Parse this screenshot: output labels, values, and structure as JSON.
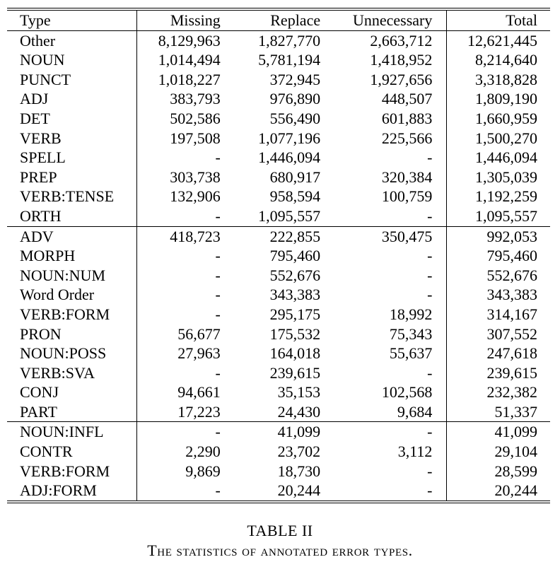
{
  "table": {
    "headers": {
      "type": "Type",
      "missing": "Missing",
      "replace": "Replace",
      "unnecessary": "Unnecessary",
      "total": "Total"
    },
    "groups": [
      [
        [
          "Other",
          "8,129,963",
          "1,827,770",
          "2,663,712",
          "12,621,445"
        ],
        [
          "NOUN",
          "1,014,494",
          "5,781,194",
          "1,418,952",
          "8,214,640"
        ],
        [
          "PUNCT",
          "1,018,227",
          "372,945",
          "1,927,656",
          "3,318,828"
        ],
        [
          "ADJ",
          "383,793",
          "976,890",
          "448,507",
          "1,809,190"
        ],
        [
          "DET",
          "502,586",
          "556,490",
          "601,883",
          "1,660,959"
        ],
        [
          "VERB",
          "197,508",
          "1,077,196",
          "225,566",
          "1,500,270"
        ],
        [
          "SPELL",
          "-",
          "1,446,094",
          "-",
          "1,446,094"
        ],
        [
          "PREP",
          "303,738",
          "680,917",
          "320,384",
          "1,305,039"
        ],
        [
          "VERB:TENSE",
          "132,906",
          "958,594",
          "100,759",
          "1,192,259"
        ],
        [
          "ORTH",
          "-",
          "1,095,557",
          "-",
          "1,095,557"
        ]
      ],
      [
        [
          "ADV",
          "418,723",
          "222,855",
          "350,475",
          "992,053"
        ],
        [
          "MORPH",
          "-",
          "795,460",
          "-",
          "795,460"
        ],
        [
          "NOUN:NUM",
          "-",
          "552,676",
          "-",
          "552,676"
        ],
        [
          "Word Order",
          "-",
          "343,383",
          "-",
          "343,383"
        ],
        [
          "VERB:FORM",
          "-",
          "295,175",
          "18,992",
          "314,167"
        ],
        [
          "PRON",
          "56,677",
          "175,532",
          "75,343",
          "307,552"
        ],
        [
          "NOUN:POSS",
          "27,963",
          "164,018",
          "55,637",
          "247,618"
        ],
        [
          "VERB:SVA",
          "-",
          "239,615",
          "-",
          "239,615"
        ],
        [
          "CONJ",
          "94,661",
          "35,153",
          "102,568",
          "232,382"
        ],
        [
          "PART",
          "17,223",
          "24,430",
          "9,684",
          "51,337"
        ]
      ],
      [
        [
          "NOUN:INFL",
          "-",
          "41,099",
          "-",
          "41,099"
        ],
        [
          "CONTR",
          "2,290",
          "23,702",
          "3,112",
          "29,104"
        ],
        [
          "VERB:FORM",
          "9,869",
          "18,730",
          "-",
          "28,599"
        ],
        [
          "ADJ:FORM",
          "-",
          "20,244",
          "-",
          "20,244"
        ]
      ]
    ]
  },
  "caption": {
    "title": "TABLE II",
    "subtitle": "The statistics of annotated error types."
  }
}
